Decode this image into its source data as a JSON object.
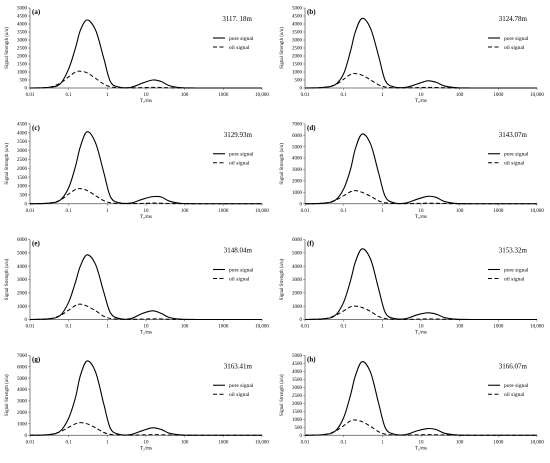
{
  "figure": {
    "ylabel": "Signal Strength (a/u)",
    "xlabel": "T₂/ms",
    "x_ticks": [
      {
        "v": 0.01,
        "label": "0.01"
      },
      {
        "v": 0.1,
        "label": "0.1"
      },
      {
        "v": 1,
        "label": "1"
      },
      {
        "v": 10,
        "label": "10"
      },
      {
        "v": 100,
        "label": "100"
      },
      {
        "v": 1000,
        "label": "1000"
      },
      {
        "v": 10000,
        "label": "10,000"
      }
    ],
    "legend": {
      "pore": "pore signal",
      "oil": "oil signal"
    },
    "colors": {
      "line": "#000000",
      "axis": "#555555",
      "background": "#ffffff"
    }
  },
  "chart_data": [
    {
      "type": "line",
      "panel_label": "(a)",
      "annotation": "3117. 18m",
      "ylim": [
        0,
        5000
      ],
      "ytick_step": 500,
      "x_scale": "log",
      "xlim": [
        0.01,
        10000
      ],
      "series": [
        {
          "name": "pore signal",
          "style": "solid",
          "x": [
            0.01,
            0.03,
            0.06,
            0.1,
            0.15,
            0.2,
            0.3,
            0.5,
            0.8,
            1.2,
            2,
            4,
            8,
            15,
            25,
            40,
            80,
            200,
            1000,
            10000
          ],
          "y": [
            0,
            40,
            250,
            1200,
            2500,
            3600,
            4250,
            3600,
            1900,
            400,
            60,
            40,
            300,
            500,
            400,
            150,
            20,
            0,
            0,
            0
          ]
        },
        {
          "name": "oil signal",
          "style": "dashed",
          "x": [
            0.01,
            0.03,
            0.06,
            0.1,
            0.15,
            0.2,
            0.3,
            0.5,
            0.8,
            1.2,
            2,
            4,
            8,
            15,
            25,
            40,
            80,
            200,
            1000,
            10000
          ],
          "y": [
            0,
            40,
            300,
            700,
            1000,
            1050,
            950,
            600,
            250,
            80,
            20,
            10,
            20,
            40,
            30,
            15,
            5,
            0,
            0,
            0
          ]
        }
      ]
    },
    {
      "type": "line",
      "panel_label": "(b)",
      "annotation": "3124.78m",
      "ylim": [
        0,
        5000
      ],
      "ytick_step": 500,
      "x_scale": "log",
      "xlim": [
        0.01,
        10000
      ],
      "series": [
        {
          "name": "pore signal",
          "style": "solid",
          "x": [
            0.01,
            0.03,
            0.06,
            0.1,
            0.15,
            0.2,
            0.3,
            0.5,
            0.8,
            1.2,
            2,
            4,
            8,
            15,
            25,
            40,
            80,
            200,
            1000,
            10000
          ],
          "y": [
            0,
            40,
            200,
            900,
            2300,
            3500,
            4350,
            3700,
            2000,
            450,
            70,
            40,
            250,
            450,
            350,
            130,
            20,
            0,
            0,
            0
          ]
        },
        {
          "name": "oil signal",
          "style": "dashed",
          "x": [
            0.01,
            0.03,
            0.06,
            0.1,
            0.15,
            0.2,
            0.3,
            0.5,
            0.8,
            1.2,
            2,
            4,
            8,
            15,
            25,
            40,
            80,
            200,
            1000,
            10000
          ],
          "y": [
            0,
            30,
            200,
            550,
            850,
            900,
            800,
            500,
            200,
            60,
            15,
            10,
            20,
            40,
            30,
            15,
            5,
            0,
            0,
            0
          ]
        }
      ]
    },
    {
      "type": "line",
      "panel_label": "(c)",
      "annotation": "3129.93m",
      "ylim": [
        0,
        4500
      ],
      "ytick_step": 500,
      "x_scale": "log",
      "xlim": [
        0.01,
        10000
      ],
      "series": [
        {
          "name": "pore signal",
          "style": "solid",
          "x": [
            0.01,
            0.03,
            0.06,
            0.1,
            0.15,
            0.2,
            0.3,
            0.5,
            0.8,
            1.2,
            2,
            4,
            8,
            15,
            25,
            40,
            80,
            200,
            1000,
            10000
          ],
          "y": [
            0,
            30,
            200,
            900,
            2100,
            3200,
            4050,
            3400,
            1800,
            400,
            60,
            40,
            250,
            400,
            380,
            150,
            20,
            0,
            0,
            0
          ]
        },
        {
          "name": "oil signal",
          "style": "dashed",
          "x": [
            0.01,
            0.03,
            0.06,
            0.1,
            0.15,
            0.2,
            0.3,
            0.5,
            0.8,
            1.2,
            2,
            4,
            8,
            15,
            25,
            40,
            80,
            200,
            1000,
            10000
          ],
          "y": [
            0,
            30,
            200,
            550,
            800,
            850,
            750,
            450,
            180,
            60,
            15,
            10,
            20,
            40,
            30,
            15,
            5,
            0,
            0,
            0
          ]
        }
      ]
    },
    {
      "type": "line",
      "panel_label": "(d)",
      "annotation": "3143.07m",
      "ylim": [
        0,
        7000
      ],
      "ytick_step": 1000,
      "x_scale": "log",
      "xlim": [
        0.01,
        10000
      ],
      "series": [
        {
          "name": "pore signal",
          "style": "solid",
          "x": [
            0.01,
            0.03,
            0.06,
            0.1,
            0.15,
            0.2,
            0.3,
            0.5,
            0.8,
            1.2,
            2,
            4,
            8,
            15,
            25,
            40,
            80,
            200,
            1000,
            10000
          ],
          "y": [
            0,
            50,
            300,
            1300,
            3000,
            4800,
            6100,
            5200,
            2700,
            600,
            90,
            60,
            400,
            650,
            550,
            200,
            30,
            0,
            0,
            0
          ]
        },
        {
          "name": "oil signal",
          "style": "dashed",
          "x": [
            0.01,
            0.03,
            0.06,
            0.1,
            0.15,
            0.2,
            0.3,
            0.5,
            0.8,
            1.2,
            2,
            4,
            8,
            15,
            25,
            40,
            80,
            200,
            1000,
            10000
          ],
          "y": [
            0,
            40,
            300,
            700,
            1050,
            1150,
            1000,
            650,
            250,
            80,
            20,
            10,
            30,
            50,
            40,
            20,
            5,
            0,
            0,
            0
          ]
        }
      ]
    },
    {
      "type": "line",
      "panel_label": "(e)",
      "annotation": "3148.04m",
      "ylim": [
        0,
        6000
      ],
      "ytick_step": 1000,
      "x_scale": "log",
      "xlim": [
        0.01,
        10000
      ],
      "series": [
        {
          "name": "pore signal",
          "style": "solid",
          "x": [
            0.01,
            0.03,
            0.06,
            0.1,
            0.15,
            0.2,
            0.3,
            0.5,
            0.8,
            1.2,
            2,
            4,
            8,
            15,
            25,
            40,
            80,
            200,
            1000,
            10000
          ],
          "y": [
            0,
            50,
            300,
            1300,
            2800,
            4000,
            4850,
            4100,
            2100,
            500,
            80,
            60,
            450,
            650,
            450,
            150,
            20,
            0,
            0,
            0
          ]
        },
        {
          "name": "oil signal",
          "style": "dashed",
          "x": [
            0.01,
            0.03,
            0.06,
            0.1,
            0.15,
            0.2,
            0.3,
            0.5,
            0.8,
            1.2,
            2,
            4,
            8,
            15,
            25,
            40,
            80,
            200,
            1000,
            10000
          ],
          "y": [
            0,
            40,
            300,
            700,
            1050,
            1150,
            1000,
            650,
            250,
            80,
            20,
            10,
            30,
            50,
            40,
            20,
            5,
            0,
            0,
            0
          ]
        }
      ]
    },
    {
      "type": "line",
      "panel_label": "(f)",
      "annotation": "3153.32m",
      "ylim": [
        0,
        6000
      ],
      "ytick_step": 1000,
      "x_scale": "log",
      "xlim": [
        0.01,
        10000
      ],
      "series": [
        {
          "name": "pore signal",
          "style": "solid",
          "x": [
            0.01,
            0.03,
            0.06,
            0.1,
            0.15,
            0.2,
            0.3,
            0.5,
            0.8,
            1.2,
            2,
            4,
            8,
            15,
            25,
            40,
            80,
            200,
            1000,
            10000
          ],
          "y": [
            0,
            50,
            300,
            1300,
            2900,
            4300,
            5300,
            4500,
            2300,
            500,
            80,
            60,
            350,
            500,
            400,
            150,
            20,
            0,
            0,
            0
          ]
        },
        {
          "name": "oil signal",
          "style": "dashed",
          "x": [
            0.01,
            0.03,
            0.06,
            0.1,
            0.15,
            0.2,
            0.3,
            0.5,
            0.8,
            1.2,
            2,
            4,
            8,
            15,
            25,
            40,
            80,
            200,
            1000,
            10000
          ],
          "y": [
            0,
            40,
            300,
            650,
            950,
            1000,
            900,
            600,
            230,
            70,
            20,
            10,
            25,
            45,
            35,
            15,
            5,
            0,
            0,
            0
          ]
        }
      ]
    },
    {
      "type": "line",
      "panel_label": "(g)",
      "annotation": "3163.41m",
      "ylim": [
        0,
        7000
      ],
      "ytick_step": 1000,
      "x_scale": "log",
      "xlim": [
        0.01,
        10000
      ],
      "series": [
        {
          "name": "pore signal",
          "style": "solid",
          "x": [
            0.01,
            0.03,
            0.06,
            0.1,
            0.15,
            0.2,
            0.3,
            0.5,
            0.8,
            1.2,
            2,
            4,
            8,
            15,
            25,
            40,
            80,
            200,
            1000,
            10000
          ],
          "y": [
            0,
            50,
            350,
            1500,
            3300,
            5200,
            6500,
            5500,
            2800,
            600,
            90,
            60,
            400,
            650,
            500,
            180,
            30,
            0,
            0,
            0
          ]
        },
        {
          "name": "oil signal",
          "style": "dashed",
          "x": [
            0.01,
            0.03,
            0.06,
            0.1,
            0.15,
            0.2,
            0.3,
            0.5,
            0.8,
            1.2,
            2,
            4,
            8,
            15,
            25,
            40,
            80,
            200,
            1000,
            10000
          ],
          "y": [
            0,
            40,
            300,
            700,
            1000,
            1100,
            1000,
            650,
            250,
            80,
            20,
            10,
            30,
            50,
            40,
            20,
            5,
            0,
            0,
            0
          ]
        }
      ]
    },
    {
      "type": "line",
      "panel_label": "(h)",
      "annotation": "3166.07m",
      "ylim": [
        0,
        5000
      ],
      "ytick_step": 500,
      "x_scale": "log",
      "xlim": [
        0.01,
        10000
      ],
      "series": [
        {
          "name": "pore signal",
          "style": "solid",
          "x": [
            0.01,
            0.03,
            0.06,
            0.1,
            0.15,
            0.2,
            0.3,
            0.5,
            0.8,
            1.2,
            2,
            4,
            8,
            15,
            25,
            40,
            80,
            200,
            1000,
            10000
          ],
          "y": [
            0,
            40,
            250,
            1100,
            2500,
            3700,
            4600,
            3900,
            2000,
            450,
            70,
            40,
            280,
            420,
            350,
            130,
            20,
            0,
            0,
            0
          ]
        },
        {
          "name": "oil signal",
          "style": "dashed",
          "x": [
            0.01,
            0.03,
            0.06,
            0.1,
            0.15,
            0.2,
            0.3,
            0.5,
            0.8,
            1.2,
            2,
            4,
            8,
            15,
            25,
            40,
            80,
            200,
            1000,
            10000
          ],
          "y": [
            0,
            30,
            250,
            600,
            900,
            950,
            850,
            550,
            220,
            70,
            20,
            10,
            25,
            40,
            30,
            15,
            5,
            0,
            0,
            0
          ]
        }
      ]
    }
  ]
}
